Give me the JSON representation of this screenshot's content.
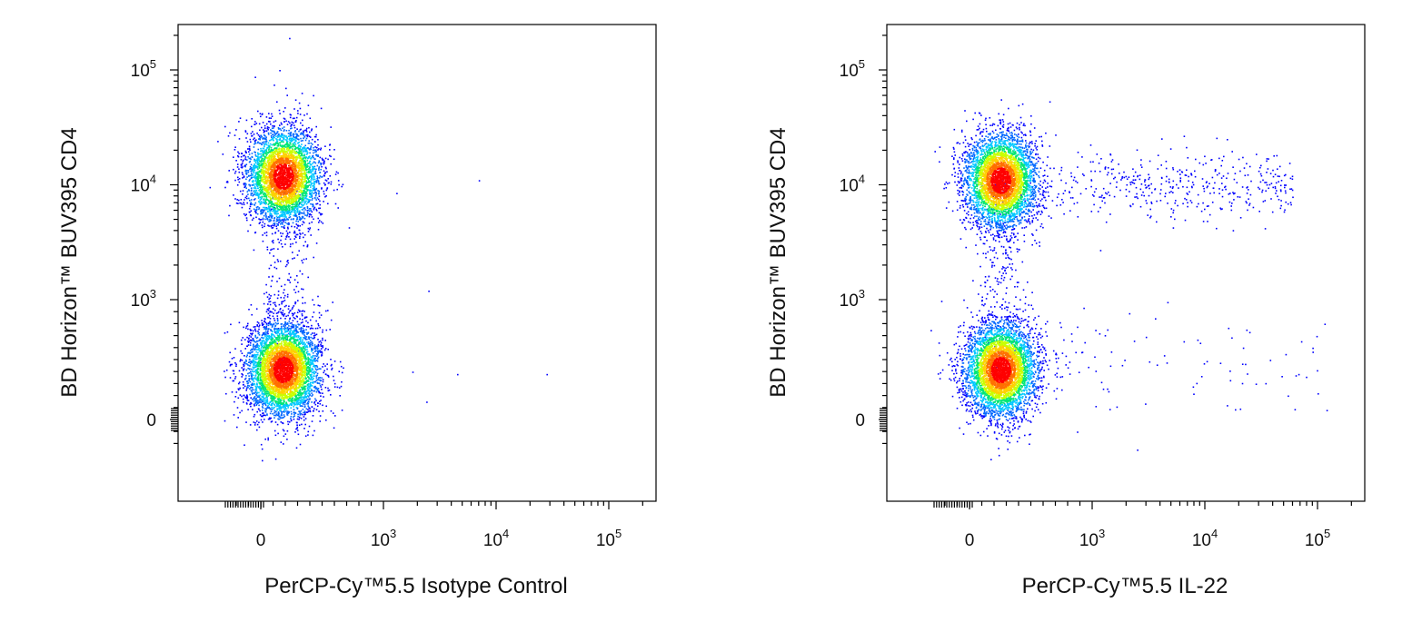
{
  "colors": {
    "density_scale": [
      "#0000ff",
      "#0066ff",
      "#00c8ff",
      "#00e676",
      "#c8ff00",
      "#ffd000",
      "#ff7000",
      "#ff0000"
    ],
    "axis": "#000000",
    "background": "#ffffff"
  },
  "chart_data": [
    {
      "type": "scatter",
      "subtype": "flow-cytometry-density-dot-plot",
      "xlabel": "PerCP-Cy™5.5 Isotype Control",
      "ylabel": "BD Horizon™ BUV395 CD4",
      "x_scale": "biexponential",
      "y_scale": "biexponential",
      "xlim": [
        -300,
        200000
      ],
      "ylim": [
        -300,
        250000
      ],
      "x_ticks": [
        {
          "value": 0,
          "label": "0",
          "exp": ""
        },
        {
          "value": 1000,
          "label": "10",
          "exp": "3"
        },
        {
          "value": 10000,
          "label": "10",
          "exp": "4"
        },
        {
          "value": 100000,
          "label": "10",
          "exp": "5"
        }
      ],
      "y_ticks": [
        {
          "value": 0,
          "label": "0",
          "exp": ""
        },
        {
          "value": 1000,
          "label": "10",
          "exp": "3"
        },
        {
          "value": 10000,
          "label": "10",
          "exp": "4"
        },
        {
          "value": 100000,
          "label": "10",
          "exp": "5"
        }
      ],
      "populations": [
        {
          "name": "",
          "x_center": 180,
          "y_center": 12000,
          "events": 4200
        },
        {
          "name": "",
          "x_center": 180,
          "y_center": 420,
          "events": 4600
        }
      ],
      "bridge_events": 260,
      "outliers": [
        {
          "x": 1300,
          "y": 8500
        },
        {
          "x": 2500,
          "y": 1200
        },
        {
          "x": 1800,
          "y": 400
        },
        {
          "x": 4500,
          "y": 380
        },
        {
          "x": 28000,
          "y": 380
        },
        {
          "x": 2400,
          "y": 150
        },
        {
          "x": 7000,
          "y": 11000
        },
        {
          "x": 230,
          "y": 190000
        },
        {
          "x": 150,
          "y": 100000
        },
        {
          "x": 200,
          "y": 70000
        }
      ]
    },
    {
      "type": "scatter",
      "subtype": "flow-cytometry-density-dot-plot",
      "xlabel": "PerCP-Cy™5.5 IL-22",
      "ylabel": "BD Horizon™ BUV395 CD4",
      "x_scale": "biexponential",
      "y_scale": "biexponential",
      "xlim": [
        -300,
        200000
      ],
      "ylim": [
        -300,
        250000
      ],
      "x_ticks": [
        {
          "value": 0,
          "label": "0",
          "exp": ""
        },
        {
          "value": 1000,
          "label": "10",
          "exp": "3"
        },
        {
          "value": 10000,
          "label": "10",
          "exp": "4"
        },
        {
          "value": 100000,
          "label": "10",
          "exp": "5"
        }
      ],
      "y_ticks": [
        {
          "value": 0,
          "label": "0",
          "exp": ""
        },
        {
          "value": 1000,
          "label": "10",
          "exp": "3"
        },
        {
          "value": 10000,
          "label": "10",
          "exp": "4"
        },
        {
          "value": 100000,
          "label": "10",
          "exp": "5"
        }
      ],
      "populations": [
        {
          "name": "",
          "x_center": 250,
          "y_center": 11000,
          "events": 4200
        },
        {
          "name": "",
          "x_center": 250,
          "y_center": 420,
          "events": 4600
        }
      ],
      "bridge_events": 260,
      "positive_tail": {
        "x_range": [
          700,
          60000
        ],
        "y_center": 10000,
        "events": 420
      },
      "positive_scatter_low": {
        "x_range": [
          700,
          100000
        ],
        "y_center": 450,
        "events": 90
      },
      "outliers": [
        {
          "x": 90000,
          "y": 600
        },
        {
          "x": 115000,
          "y": 800
        },
        {
          "x": 100000,
          "y": 220
        },
        {
          "x": 120000,
          "y": 80
        },
        {
          "x": 2500,
          "y": -250
        }
      ]
    }
  ]
}
